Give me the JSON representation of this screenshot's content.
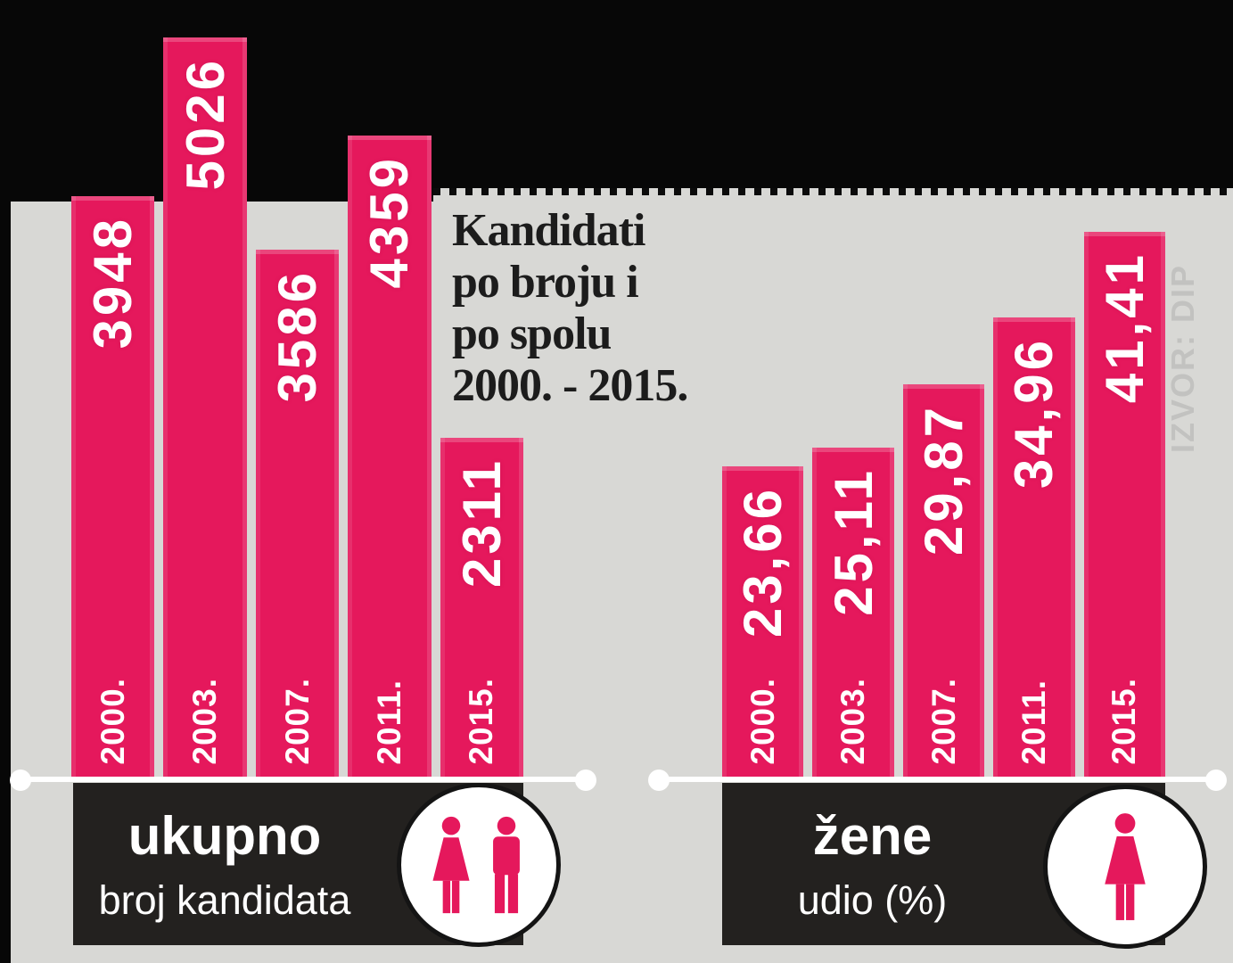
{
  "page": {
    "title_lines": [
      "Kandidati",
      "po broju i",
      "po spolu",
      "2000. - 2015."
    ],
    "source_note": "IZVOR: DIP"
  },
  "colors": {
    "bar_pink": "#e5185c",
    "background_gray": "#d8d8d5",
    "top_band_black": "#070707",
    "legend_box_black": "#23211f",
    "title_text": "#1c1c1c",
    "source_text": "#c2c2c0",
    "label_text": "#ffffff"
  },
  "chart_data": [
    {
      "type": "bar",
      "group": "ukupno",
      "subtitle": "broj kandidata",
      "legend_icon": "woman-man-icon",
      "categories": [
        "2000.",
        "2003.",
        "2007.",
        "2011.",
        "2015."
      ],
      "values": [
        3948,
        5026,
        3586,
        4359,
        2311
      ],
      "value_labels": [
        "3948",
        "5026",
        "3586",
        "4359",
        "2311"
      ],
      "ylim": [
        0,
        5026
      ],
      "grid": false,
      "legend_position": "bottom"
    },
    {
      "type": "bar",
      "group": "žene",
      "subtitle": "udio (%)",
      "legend_icon": "woman-icon",
      "categories": [
        "2000.",
        "2003.",
        "2007.",
        "2011.",
        "2015."
      ],
      "values": [
        23.66,
        25.11,
        29.87,
        34.96,
        41.41
      ],
      "value_labels": [
        "23,66",
        "25,11",
        "29,87",
        "34,96",
        "41,41"
      ],
      "ylim": [
        0,
        41.41
      ],
      "grid": false,
      "legend_position": "bottom"
    }
  ]
}
